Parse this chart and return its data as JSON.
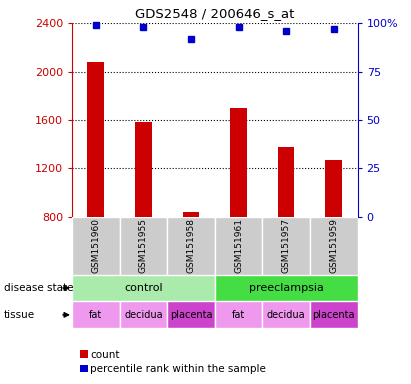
{
  "title": "GDS2548 / 200646_s_at",
  "samples": [
    "GSM151960",
    "GSM151955",
    "GSM151958",
    "GSM151961",
    "GSM151957",
    "GSM151959"
  ],
  "counts": [
    2080,
    1580,
    840,
    1700,
    1380,
    1270
  ],
  "percentiles": [
    99,
    98,
    92,
    98,
    96,
    97
  ],
  "bar_color": "#cc0000",
  "point_color": "#0000cc",
  "ylim_left": [
    800,
    2400
  ],
  "ylim_right": [
    0,
    100
  ],
  "yticks_left": [
    800,
    1200,
    1600,
    2000,
    2400
  ],
  "yticks_right": [
    0,
    25,
    50,
    75,
    100
  ],
  "ytick_right_labels": [
    "0",
    "25",
    "50",
    "75",
    "100%"
  ],
  "disease_colors": {
    "control": "#aaeaaa",
    "preeclampsia": "#44dd44"
  },
  "tissue_colors": {
    "fat": "#ee99ee",
    "decidua": "#ee99ee",
    "placenta": "#cc44cc"
  },
  "sample_bg_color": "#cccccc",
  "left_axis_color": "#cc0000",
  "right_axis_color": "#0000cc",
  "legend_count_color": "#cc0000",
  "legend_percentile_color": "#0000cc",
  "plot_bg_color": "#ffffff"
}
